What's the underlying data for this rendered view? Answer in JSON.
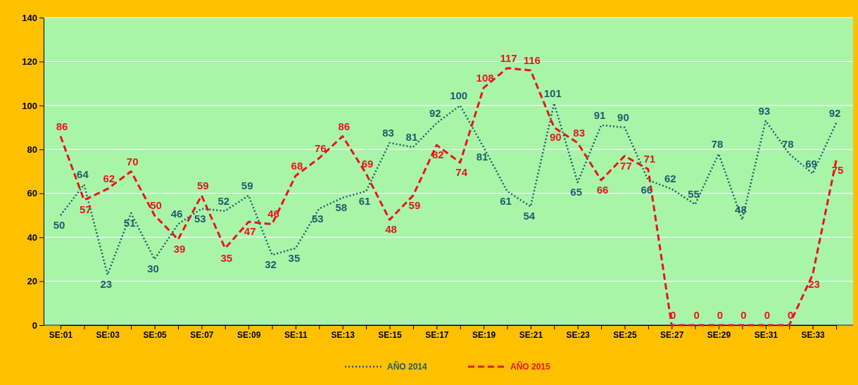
{
  "chart_data": {
    "type": "line",
    "categories": [
      "SE:01",
      null,
      "SE:03",
      null,
      "SE:05",
      null,
      "SE:07",
      null,
      "SE:09",
      null,
      "SE:11",
      null,
      "SE:13",
      null,
      "SE:15",
      null,
      "SE:17",
      null,
      "SE:19",
      null,
      "SE:21",
      null,
      "SE:23",
      null,
      "SE:25",
      null,
      "SE:27",
      null,
      "SE:29",
      null,
      "SE:31",
      null,
      "SE:33",
      null
    ],
    "series": [
      {
        "name": "AÑO 2014",
        "color": "#1f5a6e",
        "line_style": "dotted",
        "values": [
          50,
          64,
          23,
          51,
          30,
          46,
          53,
          52,
          59,
          32,
          35,
          53,
          58,
          61,
          83,
          81,
          92,
          100,
          81,
          61,
          54,
          101,
          65,
          91,
          90,
          66,
          62,
          55,
          78,
          48,
          93,
          78,
          69,
          92
        ]
      },
      {
        "name": "AÑO 2015",
        "color": "#e8141b",
        "line_style": "dashed",
        "values": [
          86,
          57,
          62,
          70,
          50,
          39,
          59,
          35,
          47,
          46,
          68,
          76,
          86,
          69,
          48,
          59,
          82,
          74,
          108,
          117,
          116,
          90,
          83,
          66,
          77,
          71,
          0,
          0,
          0,
          0,
          0,
          0,
          23,
          75
        ]
      }
    ],
    "ylim": [
      0,
      140
    ],
    "yticks": [
      0,
      20,
      40,
      60,
      80,
      100,
      120,
      140
    ],
    "grid": "y",
    "legend": "bottom",
    "marker": "none",
    "data_labels": true
  }
}
